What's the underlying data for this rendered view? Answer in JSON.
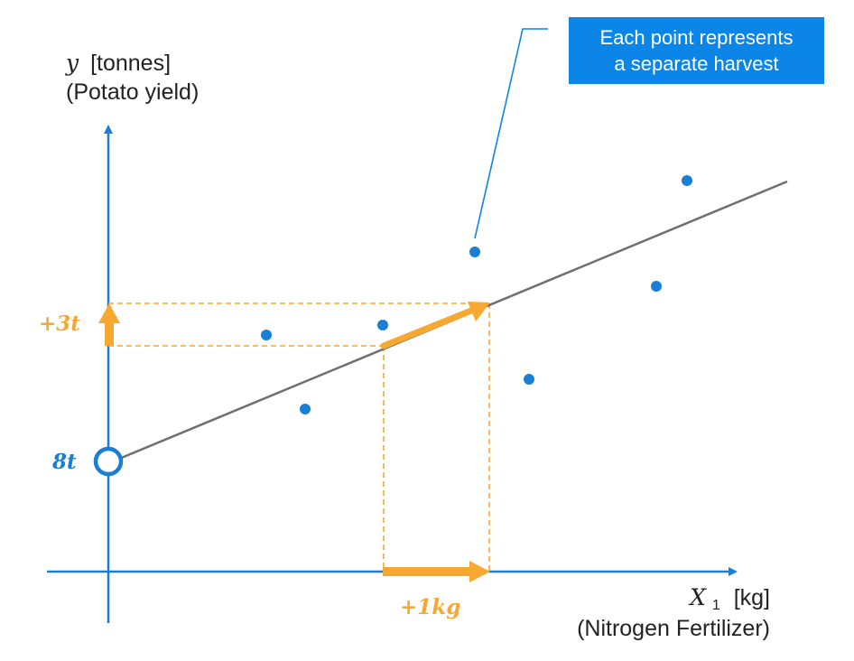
{
  "colors": {
    "axis": "#1a7fd4",
    "point": "#1a7fd4",
    "regression_line": "#6f6f6f",
    "highlight": "#f7a831",
    "callout_bg": "#0b86e8",
    "text": "#222222"
  },
  "y_axis": {
    "symbol": "y",
    "unit": "[tonnes]",
    "name": "(Potato yield)"
  },
  "x_axis": {
    "symbol": "X",
    "subscript": "1",
    "unit": "[kg]",
    "name": "(Nitrogen Fertilizer)"
  },
  "callout": {
    "line1": "Each point represents",
    "line2": "a separate harvest"
  },
  "intercept_label": "8t",
  "delta_y_label": "+3t",
  "delta_x_label": "+1kg",
  "icons": [
    "intercept-circle-icon",
    "up-arrow-icon",
    "right-arrow-icon",
    "slope-arrow-icon"
  ]
}
